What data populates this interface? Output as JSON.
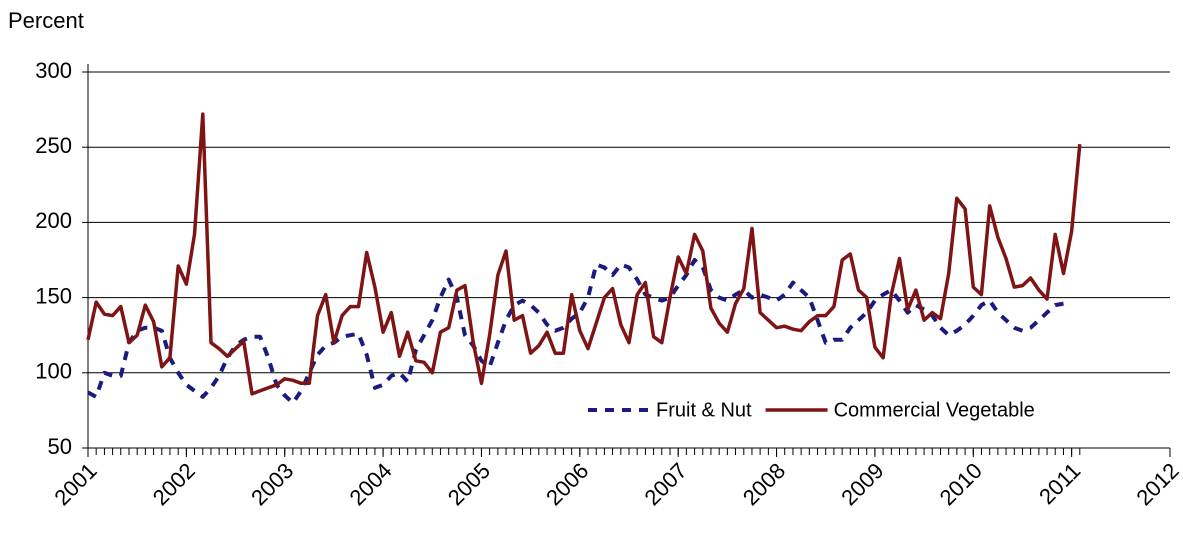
{
  "chart_data": {
    "type": "line",
    "y_label": "Percent",
    "x": [
      2001,
      2001.083,
      2001.167,
      2001.25,
      2001.333,
      2001.417,
      2001.5,
      2001.583,
      2001.667,
      2001.75,
      2001.833,
      2001.917,
      2002,
      2002.083,
      2002.167,
      2002.25,
      2002.333,
      2002.417,
      2002.5,
      2002.583,
      2002.667,
      2002.75,
      2002.833,
      2002.917,
      2003,
      2003.083,
      2003.167,
      2003.25,
      2003.333,
      2003.417,
      2003.5,
      2003.583,
      2003.667,
      2003.75,
      2003.833,
      2003.917,
      2004,
      2004.083,
      2004.167,
      2004.25,
      2004.333,
      2004.417,
      2004.5,
      2004.583,
      2004.667,
      2004.75,
      2004.833,
      2004.917,
      2005,
      2005.083,
      2005.167,
      2005.25,
      2005.333,
      2005.417,
      2005.5,
      2005.583,
      2005.667,
      2005.75,
      2005.833,
      2005.917,
      2006,
      2006.083,
      2006.167,
      2006.25,
      2006.333,
      2006.417,
      2006.5,
      2006.583,
      2006.667,
      2006.75,
      2006.833,
      2006.917,
      2007,
      2007.083,
      2007.167,
      2007.25,
      2007.333,
      2007.417,
      2007.5,
      2007.583,
      2007.667,
      2007.75,
      2007.833,
      2007.917,
      2008,
      2008.083,
      2008.167,
      2008.25,
      2008.333,
      2008.417,
      2008.5,
      2008.583,
      2008.667,
      2008.75,
      2008.833,
      2008.917,
      2009,
      2009.083,
      2009.167,
      2009.25,
      2009.333,
      2009.417,
      2009.5,
      2009.583,
      2009.667,
      2009.75,
      2009.833,
      2009.917,
      2010,
      2010.083,
      2010.167,
      2010.25,
      2010.333,
      2010.417,
      2010.5,
      2010.583,
      2010.667,
      2010.75,
      2010.833,
      2010.917,
      2011,
      2011.083
    ],
    "series": [
      {
        "name": "Fruit & Nut",
        "color": "#1a1a80",
        "dash": true,
        "values": [
          87,
          84,
          100,
          98,
          98,
          120,
          128,
          130,
          130,
          128,
          110,
          100,
          92,
          88,
          84,
          90,
          98,
          110,
          118,
          122,
          124,
          124,
          110,
          92,
          85,
          80,
          88,
          100,
          112,
          118,
          120,
          124,
          125,
          126,
          112,
          90,
          92,
          98,
          100,
          94,
          115,
          125,
          135,
          150,
          162,
          150,
          125,
          118,
          108,
          104,
          120,
          135,
          145,
          148,
          145,
          140,
          132,
          128,
          130,
          136,
          140,
          150,
          172,
          170,
          165,
          172,
          170,
          162,
          152,
          150,
          148,
          150,
          158,
          165,
          175,
          170,
          155,
          150,
          148,
          152,
          155,
          150,
          152,
          150,
          148,
          152,
          160,
          155,
          150,
          135,
          120,
          122,
          122,
          130,
          135,
          140,
          148,
          152,
          155,
          148,
          140,
          145,
          142,
          138,
          130,
          125,
          128,
          132,
          138,
          145,
          148,
          140,
          135,
          130,
          128,
          130,
          135,
          140,
          145,
          146,
          null,
          null
        ]
      },
      {
        "name": "Commercial Vegetable",
        "color": "#7f1414",
        "dash": false,
        "values": [
          122,
          147,
          139,
          138,
          144,
          120,
          125,
          145,
          134,
          104,
          110,
          171,
          159,
          192,
          272,
          120,
          116,
          111,
          116,
          121,
          86,
          88,
          90,
          92,
          96,
          95,
          93,
          93,
          138,
          152,
          120,
          138,
          144,
          144,
          180,
          157,
          127,
          140,
          111,
          127,
          108,
          107,
          100,
          127,
          130,
          155,
          158,
          120,
          93,
          125,
          165,
          181,
          135,
          138,
          113,
          118,
          127,
          113,
          113,
          152,
          128,
          116,
          133,
          150,
          156,
          132,
          120,
          152,
          160,
          124,
          120,
          150,
          177,
          166,
          192,
          181,
          143,
          133,
          127,
          146,
          156,
          196,
          140,
          135,
          130,
          131,
          129,
          128,
          134,
          138,
          138,
          144,
          175,
          179,
          155,
          150,
          117,
          110,
          152,
          176,
          142,
          155,
          135,
          140,
          136,
          166,
          216,
          209,
          157,
          152,
          211,
          190,
          176,
          157,
          158,
          163,
          155,
          149,
          192,
          166,
          194,
          252
        ]
      }
    ],
    "xlim": [
      2001,
      2012
    ],
    "xticks": [
      2001,
      2002,
      2003,
      2004,
      2005,
      2006,
      2007,
      2008,
      2009,
      2010,
      2011,
      2012
    ],
    "ylim": [
      50,
      300
    ],
    "yticks": [
      50,
      100,
      150,
      200,
      250,
      300
    ],
    "grid": true,
    "legend": "bottom-right"
  }
}
